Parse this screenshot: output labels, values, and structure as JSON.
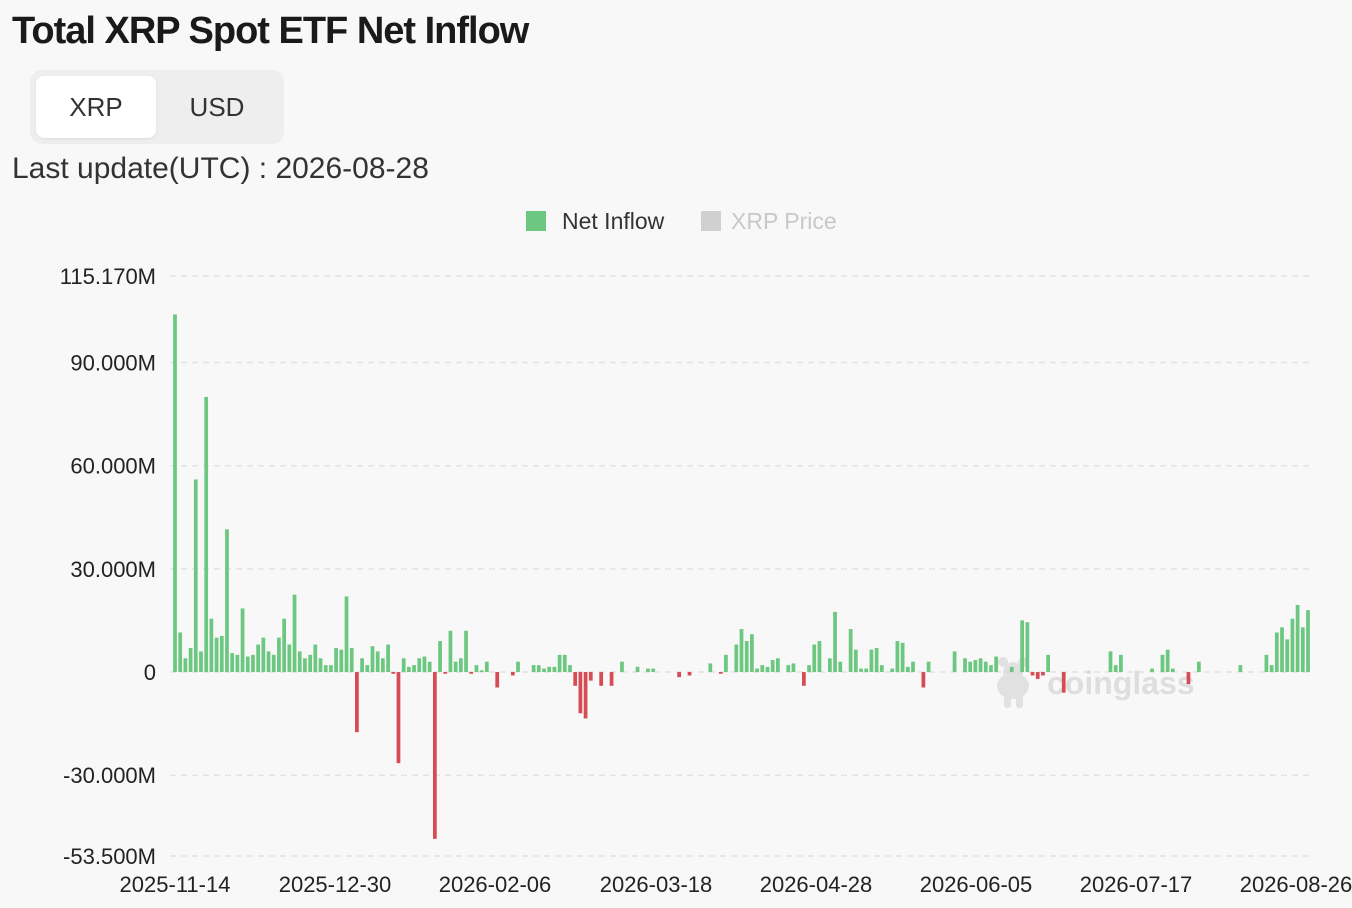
{
  "title": "Total XRP Spot ETF Net Inflow",
  "toggle": {
    "options": [
      "XRP",
      "USD"
    ],
    "selected": "XRP"
  },
  "last_update": "Last update(UTC) : 2026-08-28",
  "legend": [
    {
      "label": "Net Inflow",
      "color": "#6cc781",
      "active": true
    },
    {
      "label": "XRP Price",
      "color": "#cccccc",
      "active": false
    }
  ],
  "watermark": "coinglass",
  "colors": {
    "positive": "#6cc781",
    "negative": "#d54c55",
    "grid": "#e3e3e3"
  },
  "chart_data": {
    "type": "bar",
    "y_ticks": [
      {
        "value": 115170000,
        "label": "115.170M"
      },
      {
        "value": 90000000,
        "label": "90.000M"
      },
      {
        "value": 60000000,
        "label": "60.000M"
      },
      {
        "value": 30000000,
        "label": "30.000M"
      },
      {
        "value": 0,
        "label": "0"
      },
      {
        "value": -30000000,
        "label": "-30.000M"
      },
      {
        "value": -53500000,
        "label": "-53.500M"
      }
    ],
    "ylim": [
      -53500000,
      115170000
    ],
    "xlim": [
      "2025-11-14",
      "2026-08-26"
    ],
    "x_ticks": [
      "2025-11-14",
      "2025-12-30",
      "2026-02-06",
      "2026-03-18",
      "2026-04-28",
      "2026-06-05",
      "2026-07-17",
      "2026-08-26"
    ],
    "unit": "M",
    "values_M": [
      104,
      11.5,
      4,
      7,
      56,
      6,
      80,
      15.5,
      10,
      10.5,
      41.5,
      5.5,
      5,
      18.5,
      4.5,
      5,
      8,
      10,
      6,
      5,
      10,
      15.5,
      8,
      22.5,
      6,
      4,
      5,
      8,
      4,
      2,
      2,
      7,
      6.5,
      22,
      7,
      -17.5,
      4,
      2,
      7.5,
      6,
      4,
      8,
      -0.5,
      -26.5,
      4,
      1.5,
      2,
      4,
      4.5,
      3,
      -48.5,
      9,
      -0.5,
      12,
      3,
      4,
      12,
      -0.5,
      2,
      0.5,
      3,
      0,
      -4.5,
      0,
      0,
      -1,
      3,
      0,
      0,
      2,
      2,
      1,
      1.5,
      1.5,
      5,
      5,
      2,
      -4,
      -12,
      -13.5,
      -2.5,
      0,
      -4,
      0,
      -4,
      0,
      3,
      0,
      0,
      1.5,
      0,
      1,
      1,
      0,
      0,
      0,
      0,
      -1.5,
      0,
      -1,
      0,
      0,
      0,
      2.5,
      0,
      -0.5,
      5,
      0,
      8,
      12.5,
      9,
      11,
      1,
      2,
      1.5,
      3.5,
      4,
      0,
      2,
      2.5,
      0,
      -4,
      2,
      8,
      9,
      0,
      4,
      17.5,
      3,
      0,
      12.5,
      6.5,
      1,
      1,
      6.5,
      7,
      2,
      0,
      1,
      9,
      8.5,
      1.5,
      3,
      0,
      -4.5,
      3,
      0,
      0,
      0,
      0,
      6,
      0,
      4,
      3,
      3.5,
      4,
      3,
      2,
      4.5,
      0,
      0,
      1.5,
      0,
      15,
      14.5,
      -1,
      -2,
      -1,
      5,
      0,
      0,
      -6,
      0,
      0,
      0,
      0,
      0,
      0,
      0,
      0,
      6,
      2,
      5,
      0,
      0,
      0,
      0,
      0,
      1,
      0,
      5,
      6.5,
      1,
      0,
      0,
      -3.5,
      0,
      3,
      0,
      0,
      0,
      0,
      0,
      0,
      0,
      2,
      0,
      0,
      0,
      0,
      5,
      2,
      11.5,
      13,
      9.5,
      15.5,
      19.5,
      13,
      18
    ]
  }
}
